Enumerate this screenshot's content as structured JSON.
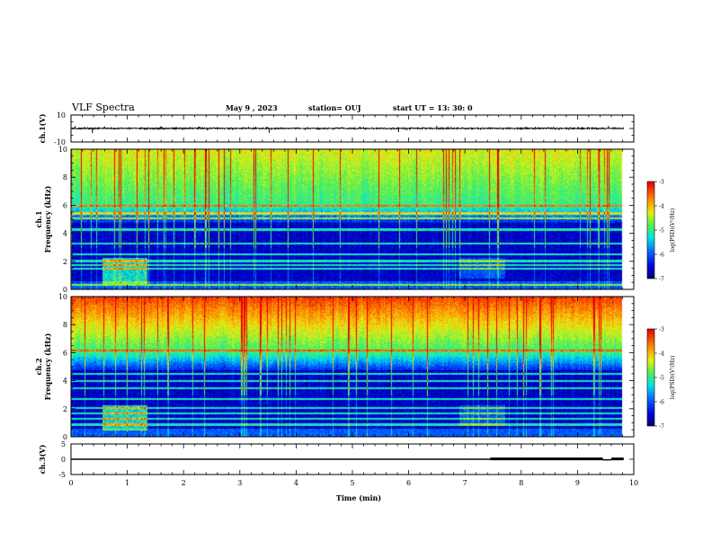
{
  "header": {
    "title": "VLF  Spectra",
    "date": "May 9   , 2023",
    "station": "station= OUJ",
    "start": "start  UT  =   13: 30: 0"
  },
  "chart_data": [
    {
      "type": "line",
      "name": "ch1-waveform",
      "ylabel": "ch.1(V)",
      "ylim": [
        -10,
        10
      ],
      "yticks": [
        "10",
        "-10"
      ],
      "xlim": [
        0,
        10
      ],
      "baseline": 0.1,
      "noise_amplitude": 0.6,
      "spikes": [
        {
          "x": 0.07,
          "y": 1.8
        },
        {
          "x": 0.38,
          "y": -3.5
        },
        {
          "x": 3.52,
          "y": -3.2
        },
        {
          "x": 5.82,
          "y": -2.6
        },
        {
          "x": 6.5,
          "y": 2.0
        },
        {
          "x": 9.55,
          "y": 1.8
        }
      ]
    },
    {
      "type": "heatmap",
      "name": "ch1-spectrogram",
      "ylabel": "ch.1\nFrequency  (kHz)",
      "ylabel_lines": [
        "ch.1",
        "Frequency  (kHz)"
      ],
      "ylim": [
        0,
        10
      ],
      "yticks": [
        "0",
        "2",
        "4",
        "6",
        "8",
        "10"
      ],
      "xlim": [
        0,
        10
      ],
      "data_end_min": 9.8,
      "strong_bands_khz": [
        0.35,
        1.5,
        1.75,
        2.05,
        2.55,
        3.3,
        4.3,
        5.1,
        5.45,
        6.0
      ],
      "burst": {
        "t0": 0.55,
        "t1": 1.35,
        "f0": 0.4,
        "f1": 2.3
      },
      "colorbar": {
        "label": "log(PSD)(V²/Hz)",
        "min": -7,
        "max": -3,
        "ticks": [
          "-3",
          "-4",
          "-5",
          "-6",
          "-7"
        ]
      }
    },
    {
      "type": "heatmap",
      "name": "ch2-spectrogram",
      "ylabel": "ch.2\nFrequency  (kHz)",
      "ylabel_lines": [
        "ch.2",
        "Frequency  (kHz)"
      ],
      "ylim": [
        0,
        10
      ],
      "yticks": [
        "0",
        "2",
        "4",
        "6",
        "8",
        "10"
      ],
      "xlim": [
        0,
        10
      ],
      "data_end_min": 9.8,
      "strong_bands_khz": [
        0.9,
        1.3,
        1.7,
        2.1,
        2.7,
        3.5,
        4.0,
        4.5,
        6.2
      ],
      "burst": {
        "t0": 0.55,
        "t1": 1.35,
        "f0": 0.5,
        "f1": 2.3
      },
      "colorbar": {
        "label": "log(PSD)(V²/Hz)",
        "min": -7,
        "max": -3,
        "ticks": [
          "-3",
          "-4",
          "-5",
          "-6",
          "-7"
        ]
      }
    },
    {
      "type": "line",
      "name": "ch3-waveform",
      "ylabel": "ch.3(V)",
      "ylim": [
        -5,
        5
      ],
      "yticks": [
        "5",
        "0",
        "-5"
      ],
      "xlim": [
        0,
        10
      ],
      "baseline": 0.0,
      "segments": [
        {
          "x0": 0,
          "x1": 7.45,
          "y": 0.0
        },
        {
          "x0": 7.45,
          "x1": 9.45,
          "y": 0.2
        },
        {
          "x0": 9.45,
          "x1": 9.6,
          "y": -0.2
        },
        {
          "x0": 9.6,
          "x1": 9.82,
          "y": 0.2
        }
      ]
    }
  ],
  "x_axis": {
    "label": "Time  (min)",
    "ticks": [
      "0",
      "1",
      "2",
      "3",
      "4",
      "5",
      "6",
      "7",
      "8",
      "9",
      "10"
    ]
  }
}
